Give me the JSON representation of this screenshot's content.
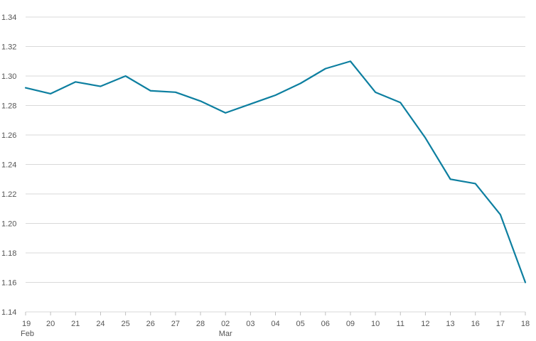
{
  "chart_data": {
    "type": "line",
    "x": [
      "19 Feb",
      "20",
      "21",
      "24",
      "25",
      "26",
      "27",
      "28",
      "02 Mar",
      "03",
      "04",
      "05",
      "06",
      "09",
      "10",
      "11",
      "12",
      "13",
      "16",
      "17",
      "18"
    ],
    "x_tick_labels": [
      "19",
      "20",
      "21",
      "24",
      "25",
      "26",
      "27",
      "28",
      "02",
      "03",
      "04",
      "05",
      "06",
      "09",
      "10",
      "11",
      "12",
      "13",
      "16",
      "17",
      "18"
    ],
    "x_month_labels": [
      {
        "index": 0,
        "label": "Feb"
      },
      {
        "index": 8,
        "label": "Mar"
      }
    ],
    "series": [
      {
        "values": [
          1.292,
          1.288,
          1.296,
          1.293,
          1.3,
          1.29,
          1.289,
          1.283,
          1.275,
          1.281,
          1.287,
          1.295,
          1.305,
          1.31,
          1.289,
          1.282,
          1.258,
          1.23,
          1.227,
          1.206,
          1.16
        ]
      }
    ],
    "ylim": [
      1.14,
      1.34
    ],
    "y_ticks": [
      1.14,
      1.16,
      1.18,
      1.2,
      1.22,
      1.24,
      1.26,
      1.28,
      1.3,
      1.32,
      1.34
    ],
    "y_tick_labels": [
      "1.14",
      "1.16",
      "1.18",
      "1.20",
      "1.22",
      "1.24",
      "1.26",
      "1.28",
      "1.30",
      "1.32",
      "1.34"
    ],
    "grid": true,
    "title": "",
    "xlabel": "",
    "ylabel": "",
    "colors": {
      "line": "#0d7fa0",
      "grid": "#d9d9d9",
      "text": "#555555"
    }
  }
}
